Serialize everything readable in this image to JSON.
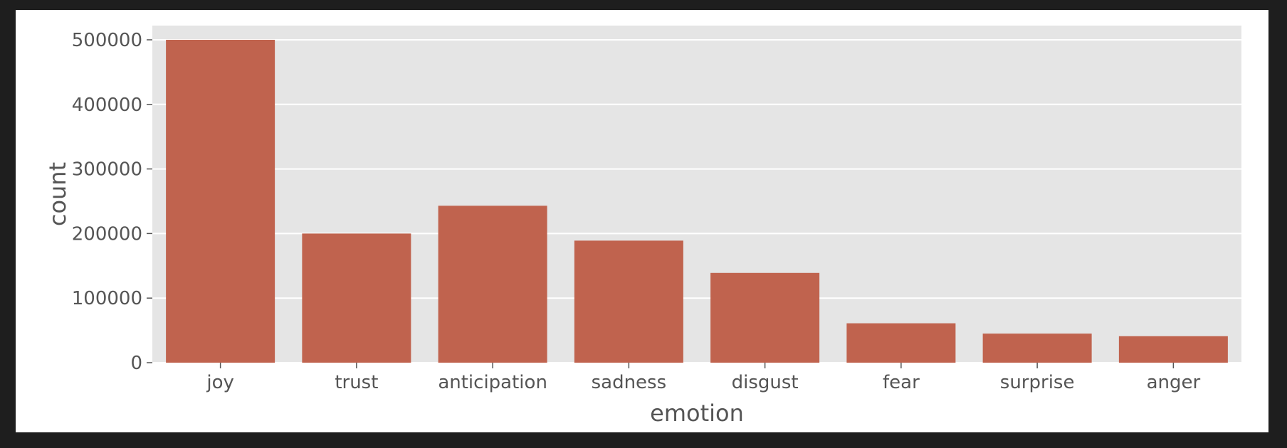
{
  "colors": {
    "bar": "#c0634e",
    "plot_background": "#e5e5e5",
    "grid": "#ffffff",
    "text": "#555555",
    "figure_background": "#ffffff",
    "window_background": "#1e1e1e"
  },
  "chart_data": {
    "type": "bar",
    "categories": [
      "joy",
      "trust",
      "anticipation",
      "sadness",
      "disgust",
      "fear",
      "surprise",
      "anger"
    ],
    "values": [
      500000,
      200000,
      243000,
      189000,
      139000,
      61000,
      45000,
      41000
    ],
    "title": "",
    "xlabel": "emotion",
    "ylabel": "count",
    "ylim": [
      0,
      522000
    ],
    "yticks": [
      0,
      100000,
      200000,
      300000,
      400000,
      500000
    ],
    "ytick_labels": [
      "0",
      "100000",
      "200000",
      "300000",
      "400000",
      "500000"
    ],
    "grid": true,
    "legend": false
  }
}
